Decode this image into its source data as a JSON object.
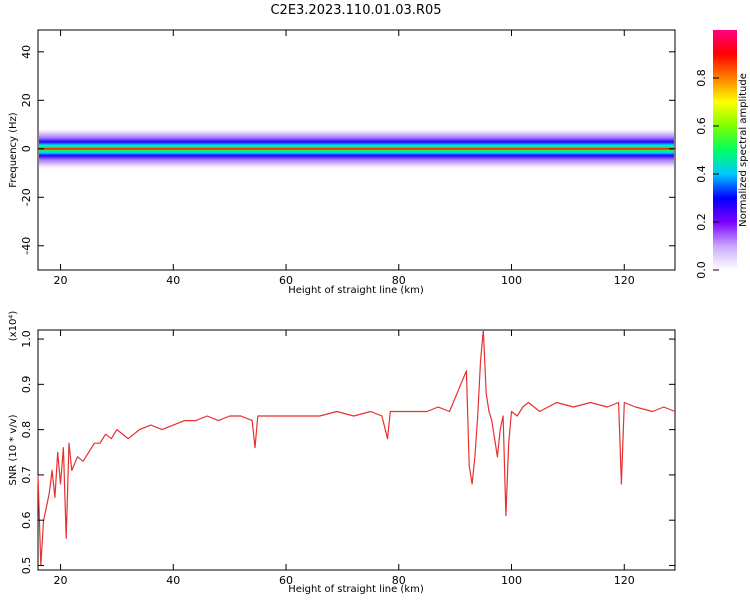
{
  "title": "C2E3.2023.110.01.03.R05",
  "chart_data": [
    {
      "type": "heatmap",
      "xlabel": "Height of straight line (km)",
      "ylabel": "Frequency (Hz)",
      "xlim": [
        16,
        129
      ],
      "ylim": [
        -50,
        49
      ],
      "x_ticks": [
        20,
        40,
        60,
        80,
        100,
        120
      ],
      "y_ticks": [
        -40,
        -20,
        0,
        20,
        40
      ],
      "colorbar": {
        "label": "Normalized spectral amplitude",
        "range": [
          0,
          1
        ],
        "ticks": [
          "0.0",
          "0.2",
          "0.4",
          "0.6",
          "0.8"
        ],
        "colors": [
          "#ffffff",
          "#c9a8ff",
          "#7a00ff",
          "#0000ff",
          "#00c8ff",
          "#00ff60",
          "#80ff00",
          "#ffff00",
          "#ff8000",
          "#ff0000",
          "#ff0080"
        ]
      },
      "band": {
        "center_hz": 0,
        "half_width_hz": 4,
        "peak_amplitude": 0.9
      },
      "grid": false
    },
    {
      "type": "line",
      "xlabel": "Height of straight line (km)",
      "ylabel": "SNR (10 * v/v)",
      "y_multiplier": "(x10⁴)",
      "xlim": [
        16,
        129
      ],
      "ylim": [
        0.49,
        1.02
      ],
      "x_ticks": [
        20,
        40,
        60,
        80,
        100,
        120
      ],
      "y_ticks": [
        "0.5",
        "0.6",
        "0.7",
        "0.8",
        "0.9",
        "1.0"
      ],
      "color": "#e83030",
      "x": [
        16,
        16.5,
        17,
        17.5,
        18,
        18.5,
        19,
        19.5,
        20,
        20.5,
        21,
        21.5,
        22,
        23,
        24,
        25,
        26,
        27,
        28,
        29,
        30,
        32,
        34,
        36,
        38,
        40,
        42,
        44,
        46,
        48,
        50,
        52,
        54,
        54.5,
        55,
        57,
        60,
        63,
        66,
        69,
        72,
        75,
        77,
        78,
        78.5,
        79,
        82,
        85,
        87,
        89,
        90,
        91,
        92,
        92.5,
        93,
        93.5,
        94,
        94.5,
        95,
        95.5,
        96,
        96.5,
        97,
        97.5,
        98,
        98.5,
        99,
        99.5,
        100,
        101,
        102,
        103,
        104,
        105,
        108,
        111,
        114,
        117,
        119,
        119.5,
        120,
        122,
        125,
        127,
        129
      ],
      "y": [
        0.7,
        0.5,
        0.6,
        0.63,
        0.66,
        0.71,
        0.65,
        0.75,
        0.68,
        0.76,
        0.56,
        0.77,
        0.71,
        0.74,
        0.73,
        0.75,
        0.77,
        0.77,
        0.79,
        0.78,
        0.8,
        0.78,
        0.8,
        0.81,
        0.8,
        0.81,
        0.82,
        0.82,
        0.83,
        0.82,
        0.83,
        0.83,
        0.82,
        0.76,
        0.83,
        0.83,
        0.83,
        0.83,
        0.83,
        0.84,
        0.83,
        0.84,
        0.83,
        0.78,
        0.84,
        0.84,
        0.84,
        0.84,
        0.85,
        0.84,
        0.87,
        0.9,
        0.93,
        0.72,
        0.68,
        0.74,
        0.83,
        0.95,
        1.02,
        0.88,
        0.84,
        0.82,
        0.78,
        0.74,
        0.8,
        0.83,
        0.61,
        0.77,
        0.84,
        0.83,
        0.85,
        0.86,
        0.85,
        0.84,
        0.86,
        0.85,
        0.86,
        0.85,
        0.86,
        0.68,
        0.86,
        0.85,
        0.84,
        0.85,
        0.84
      ],
      "grid": false
    }
  ]
}
